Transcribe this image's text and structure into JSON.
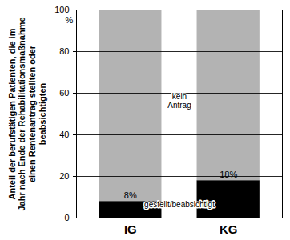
{
  "chart_data": {
    "type": "bar",
    "stacked": true,
    "ylabel": "Anteil der berufstätigen Patienten, die im Jahr nach Ende der Rehabilitationsmaßnahme einen Rentenantrag stellten oder beabsichtigten",
    "y_unit_label": "%",
    "categories": [
      "IG",
      "KG"
    ],
    "series": [
      {
        "name": "gestellt/beabsichtigt",
        "color": "#000000",
        "values": [
          8,
          18
        ],
        "value_labels": [
          "8%",
          "18%"
        ]
      },
      {
        "name": "kein Antrag",
        "color": "#b3b3b3",
        "values": [
          92,
          82
        ]
      }
    ],
    "ylim": [
      0,
      100
    ],
    "yticks": [
      0,
      20,
      40,
      60,
      80,
      100
    ],
    "grid": true,
    "data_labels": true
  }
}
